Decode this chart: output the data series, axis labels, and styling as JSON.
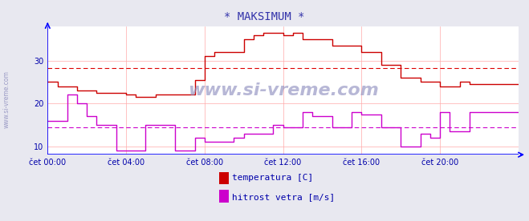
{
  "title": "* MAKSIMUM *",
  "title_color": "#3333aa",
  "bg_color": "#e8e8f0",
  "plot_bg_color": "#ffffff",
  "grid_color": "#ffaaaa",
  "axis_color": "#0000ff",
  "tick_color": "#0000aa",
  "watermark": "www.si-vreme.com",
  "watermark_color": "#8888bb",
  "side_label": "www.si-vreme.com",
  "side_label_color": "#8888bb",
  "xlim": [
    0,
    288
  ],
  "ylim": [
    8,
    38
  ],
  "yticks": [
    10,
    20,
    30
  ],
  "xtick_labels": [
    "čet 00:00",
    "čet 04:00",
    "čet 08:00",
    "čet 12:00",
    "čet 16:00",
    "čet 20:00"
  ],
  "xtick_positions": [
    0,
    48,
    96,
    144,
    192,
    240
  ],
  "hline_temp": 28.3,
  "hline_wind": 14.5,
  "hline_color_temp": "#dd0000",
  "hline_color_wind": "#cc00cc",
  "temp_color": "#cc0000",
  "wind_color": "#cc00cc",
  "legend_temp_label": "temperatura [C]",
  "legend_wind_label": "hitrost vetra [m/s]",
  "legend_text_color": "#0000aa",
  "temp_data": [
    [
      0,
      25.0
    ],
    [
      6,
      25.0
    ],
    [
      6,
      24.0
    ],
    [
      18,
      24.0
    ],
    [
      18,
      23.0
    ],
    [
      30,
      23.0
    ],
    [
      30,
      22.5
    ],
    [
      48,
      22.5
    ],
    [
      48,
      22.0
    ],
    [
      54,
      22.0
    ],
    [
      54,
      21.5
    ],
    [
      66,
      21.5
    ],
    [
      66,
      22.0
    ],
    [
      72,
      22.0
    ],
    [
      72,
      22.0
    ],
    [
      90,
      22.0
    ],
    [
      90,
      25.5
    ],
    [
      96,
      25.5
    ],
    [
      96,
      31.0
    ],
    [
      102,
      31.0
    ],
    [
      102,
      32.0
    ],
    [
      114,
      32.0
    ],
    [
      114,
      32.0
    ],
    [
      120,
      32.0
    ],
    [
      120,
      35.0
    ],
    [
      126,
      35.0
    ],
    [
      126,
      36.0
    ],
    [
      132,
      36.0
    ],
    [
      132,
      36.5
    ],
    [
      144,
      36.5
    ],
    [
      144,
      36.0
    ],
    [
      150,
      36.0
    ],
    [
      150,
      36.5
    ],
    [
      156,
      36.5
    ],
    [
      156,
      35.0
    ],
    [
      168,
      35.0
    ],
    [
      168,
      35.0
    ],
    [
      174,
      35.0
    ],
    [
      174,
      33.5
    ],
    [
      192,
      33.5
    ],
    [
      192,
      32.0
    ],
    [
      204,
      32.0
    ],
    [
      204,
      29.0
    ],
    [
      216,
      29.0
    ],
    [
      216,
      26.0
    ],
    [
      228,
      26.0
    ],
    [
      228,
      25.0
    ],
    [
      240,
      25.0
    ],
    [
      240,
      24.0
    ],
    [
      252,
      24.0
    ],
    [
      252,
      25.0
    ],
    [
      258,
      25.0
    ],
    [
      258,
      24.5
    ],
    [
      288,
      24.5
    ]
  ],
  "wind_data": [
    [
      0,
      16.0
    ],
    [
      12,
      16.0
    ],
    [
      12,
      22.0
    ],
    [
      18,
      22.0
    ],
    [
      18,
      20.0
    ],
    [
      24,
      20.0
    ],
    [
      24,
      17.0
    ],
    [
      30,
      17.0
    ],
    [
      30,
      15.0
    ],
    [
      42,
      15.0
    ],
    [
      42,
      9.0
    ],
    [
      60,
      9.0
    ],
    [
      60,
      15.0
    ],
    [
      78,
      15.0
    ],
    [
      78,
      9.0
    ],
    [
      90,
      9.0
    ],
    [
      90,
      12.0
    ],
    [
      96,
      12.0
    ],
    [
      96,
      11.0
    ],
    [
      114,
      11.0
    ],
    [
      114,
      12.0
    ],
    [
      120,
      12.0
    ],
    [
      120,
      13.0
    ],
    [
      138,
      13.0
    ],
    [
      138,
      15.0
    ],
    [
      144,
      15.0
    ],
    [
      144,
      14.5
    ],
    [
      156,
      14.5
    ],
    [
      156,
      18.0
    ],
    [
      162,
      18.0
    ],
    [
      162,
      17.0
    ],
    [
      174,
      17.0
    ],
    [
      174,
      14.5
    ],
    [
      186,
      14.5
    ],
    [
      186,
      18.0
    ],
    [
      192,
      18.0
    ],
    [
      192,
      17.5
    ],
    [
      204,
      17.5
    ],
    [
      204,
      14.5
    ],
    [
      216,
      14.5
    ],
    [
      216,
      10.0
    ],
    [
      228,
      10.0
    ],
    [
      228,
      13.0
    ],
    [
      234,
      13.0
    ],
    [
      234,
      12.0
    ],
    [
      240,
      12.0
    ],
    [
      240,
      18.0
    ],
    [
      246,
      18.0
    ],
    [
      246,
      13.5
    ],
    [
      258,
      13.5
    ],
    [
      258,
      18.0
    ],
    [
      288,
      18.0
    ]
  ]
}
